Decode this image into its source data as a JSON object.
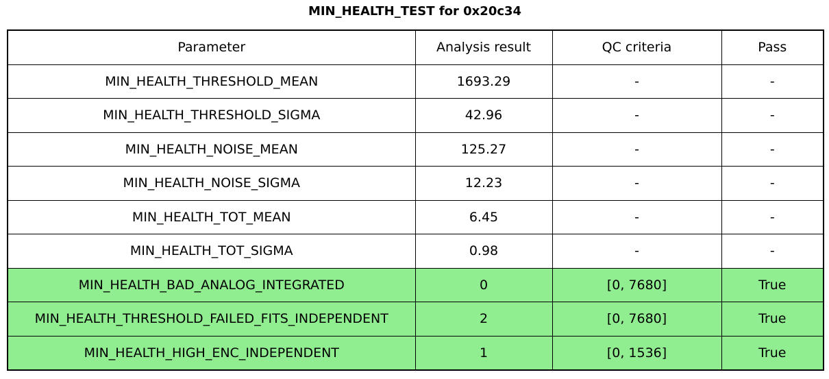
{
  "title": "MIN_HEALTH_TEST for 0x20c34",
  "colors": {
    "highlight_green": "#90EE90",
    "row_white": "#ffffff",
    "border": "#000000",
    "text": "#000000"
  },
  "chart_data": {
    "type": "table",
    "title": "MIN_HEALTH_TEST for 0x20c34",
    "columns": [
      "Parameter",
      "Analysis result",
      "QC criteria",
      "Pass"
    ],
    "rows": [
      {
        "parameter": "MIN_HEALTH_THRESHOLD_MEAN",
        "analysis_result": "1693.29",
        "qc_criteria": "-",
        "pass": "-",
        "highlighted": false
      },
      {
        "parameter": "MIN_HEALTH_THRESHOLD_SIGMA",
        "analysis_result": "42.96",
        "qc_criteria": "-",
        "pass": "-",
        "highlighted": false
      },
      {
        "parameter": "MIN_HEALTH_NOISE_MEAN",
        "analysis_result": "125.27",
        "qc_criteria": "-",
        "pass": "-",
        "highlighted": false
      },
      {
        "parameter": "MIN_HEALTH_NOISE_SIGMA",
        "analysis_result": "12.23",
        "qc_criteria": "-",
        "pass": "-",
        "highlighted": false
      },
      {
        "parameter": "MIN_HEALTH_TOT_MEAN",
        "analysis_result": "6.45",
        "qc_criteria": "-",
        "pass": "-",
        "highlighted": false
      },
      {
        "parameter": "MIN_HEALTH_TOT_SIGMA",
        "analysis_result": "0.98",
        "qc_criteria": "-",
        "pass": "-",
        "highlighted": false
      },
      {
        "parameter": "MIN_HEALTH_BAD_ANALOG_INTEGRATED",
        "analysis_result": "0",
        "qc_criteria": "[0, 7680]",
        "pass": "True",
        "highlighted": true
      },
      {
        "parameter": "MIN_HEALTH_THRESHOLD_FAILED_FITS_INDEPENDENT",
        "analysis_result": "2",
        "qc_criteria": "[0, 7680]",
        "pass": "True",
        "highlighted": true
      },
      {
        "parameter": "MIN_HEALTH_HIGH_ENC_INDEPENDENT",
        "analysis_result": "1",
        "qc_criteria": "[0, 1536]",
        "pass": "True",
        "highlighted": true
      }
    ]
  }
}
